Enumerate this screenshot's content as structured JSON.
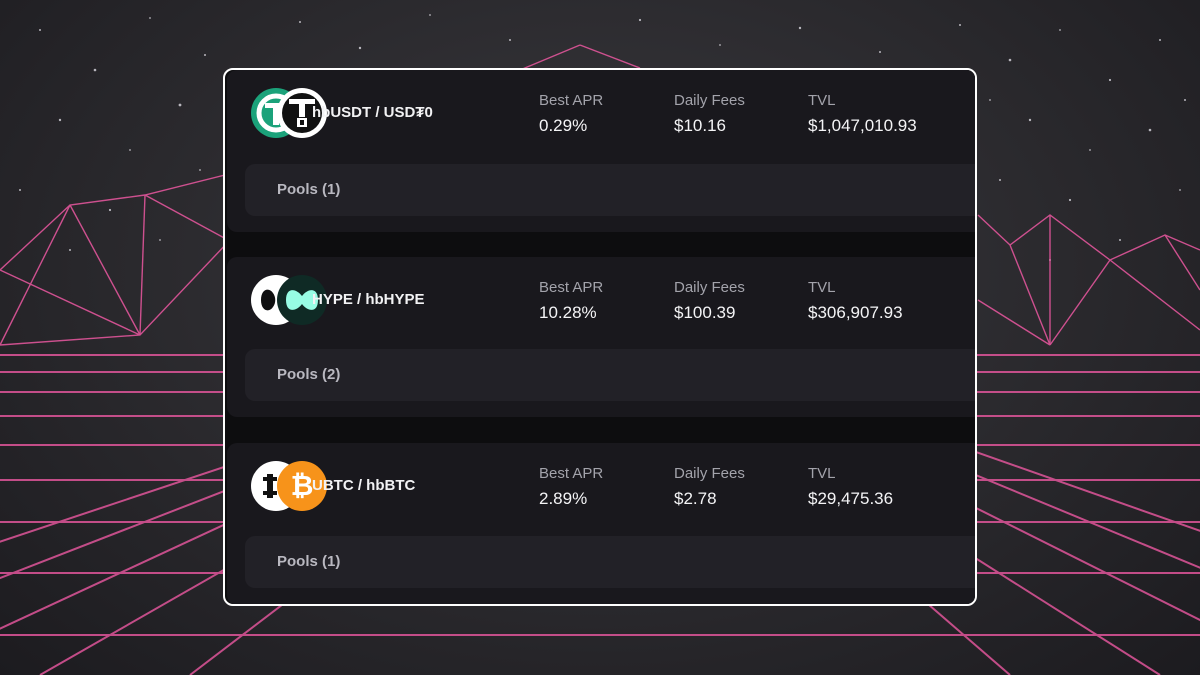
{
  "pairs": [
    {
      "name": "hbUSDT / USD₮0",
      "best_apr_label": "Best APR",
      "best_apr": "0.29%",
      "daily_fees_label": "Daily Fees",
      "daily_fees": "$10.16",
      "tvl_label": "TVL",
      "tvl": "$1,047,010.93",
      "pools_label": "Pools (1)",
      "token_a_icon": "usdt-green-icon",
      "token_b_icon": "usdt0-icon"
    },
    {
      "name": "HYPE / hbHYPE",
      "best_apr_label": "Best APR",
      "best_apr": "10.28%",
      "daily_fees_label": "Daily Fees",
      "daily_fees": "$100.39",
      "tvl_label": "TVL",
      "tvl": "$306,907.93",
      "pools_label": "Pools (2)",
      "token_a_icon": "hype-white-icon",
      "token_b_icon": "hype-teal-icon"
    },
    {
      "name": "UBTC / hbBTC",
      "best_apr_label": "Best APR",
      "best_apr": "2.89%",
      "daily_fees_label": "Daily Fees",
      "daily_fees": "$2.78",
      "tvl_label": "TVL",
      "tvl": "$29,475.36",
      "pools_label": "Pools (1)",
      "token_a_icon": "ubtc-icon",
      "token_b_icon": "bitcoin-icon"
    }
  ],
  "colors": {
    "grid_pink": "#e0559a",
    "bitcoin_orange": "#f7931a",
    "usdt_green": "#1ba27a",
    "hype_teal": "#97fce4"
  }
}
